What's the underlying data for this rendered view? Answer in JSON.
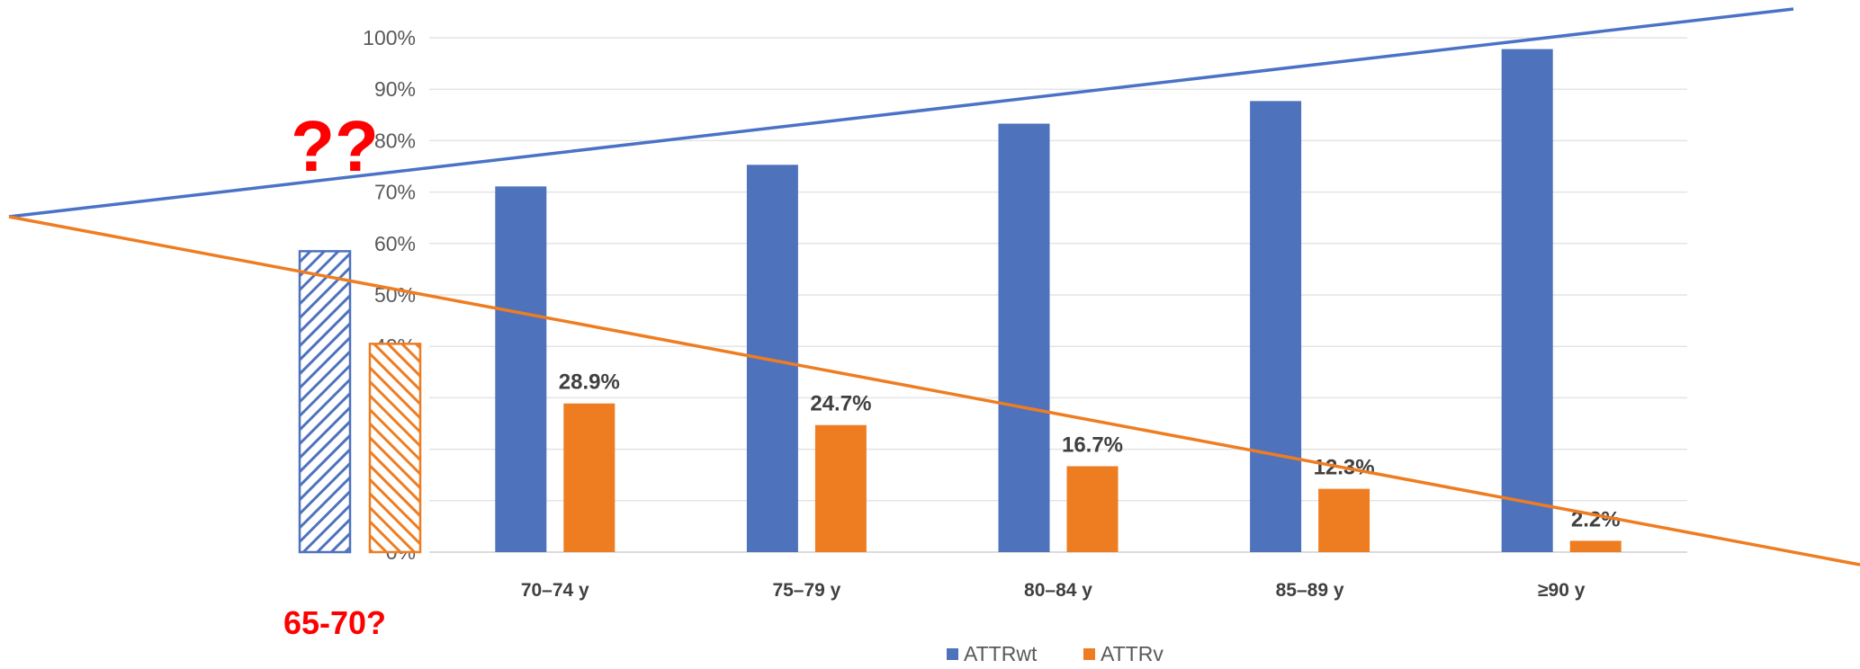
{
  "chart_data": {
    "type": "bar",
    "categories": [
      "70–74 y",
      "75–79 y",
      "80–84 y",
      "85–89 y",
      "≥90 y"
    ],
    "series": [
      {
        "name": "ATTRwt",
        "values": [
          71.1,
          75.3,
          83.3,
          87.7,
          97.8
        ],
        "color": "#4f72bd"
      },
      {
        "name": "ATTRv",
        "values": [
          28.9,
          24.7,
          16.7,
          12.3,
          2.2
        ],
        "color": "#ee7d22",
        "data_labels": [
          "28.9%",
          "24.7%",
          "16.7%",
          "12.3%",
          "2.2%"
        ]
      }
    ],
    "ylim": [
      0,
      100
    ],
    "yticks": [
      "0%",
      "10%",
      "20%",
      "30%",
      "40%",
      "50%",
      "60%",
      "70%",
      "80%",
      "90%",
      "100%"
    ],
    "grid": true,
    "legend_position": "bottom",
    "annotations": {
      "question_marks": "??",
      "age_label": "65-70?",
      "annotation_color": "#ff0000",
      "hypothetical_bars": {
        "ATTRwt": 58.5,
        "ATTRv": 40.5
      },
      "trend_lines": [
        {
          "series": "ATTRwt",
          "color": "#4a72c6"
        },
        {
          "series": "ATTRv",
          "color": "#ee7d22"
        }
      ]
    }
  }
}
